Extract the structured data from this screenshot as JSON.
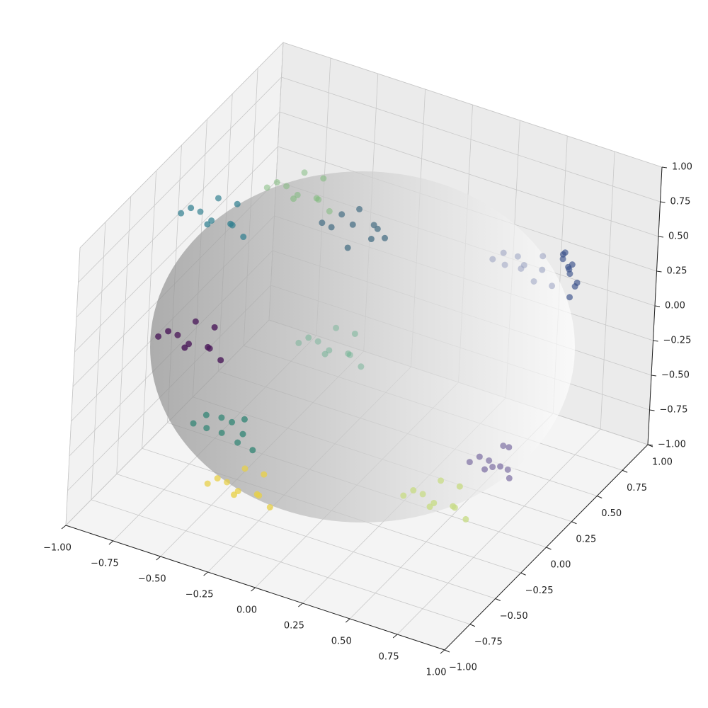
{
  "chart_data": {
    "type": "scatter3d",
    "xlim": [
      -1,
      1
    ],
    "ylim": [
      -1,
      1
    ],
    "zlim": [
      -1,
      1
    ],
    "grid": true,
    "xticks": [
      {
        "value": -1,
        "label": "−1.00"
      },
      {
        "value": -0.75,
        "label": "−0.75"
      },
      {
        "value": -0.5,
        "label": "−0.50"
      },
      {
        "value": -0.25,
        "label": "−0.25"
      },
      {
        "value": 0,
        "label": "0.00"
      },
      {
        "value": 0.25,
        "label": "0.25"
      },
      {
        "value": 0.5,
        "label": "0.50"
      },
      {
        "value": 0.75,
        "label": "0.75"
      },
      {
        "value": 1,
        "label": "1.00"
      }
    ],
    "yticks": [
      {
        "value": -1,
        "label": "−1.00"
      },
      {
        "value": -0.75,
        "label": "−0.75"
      },
      {
        "value": -0.5,
        "label": "−0.50"
      },
      {
        "value": -0.25,
        "label": "−0.25"
      },
      {
        "value": 0,
        "label": "0.00"
      },
      {
        "value": 0.25,
        "label": "0.25"
      },
      {
        "value": 0.5,
        "label": "0.50"
      },
      {
        "value": 0.75,
        "label": "0.75"
      },
      {
        "value": 1,
        "label": "1.00"
      }
    ],
    "zticks": [
      {
        "value": -1,
        "label": "−1.00"
      },
      {
        "value": -0.75,
        "label": "−0.75"
      },
      {
        "value": -0.5,
        "label": "−0.50"
      },
      {
        "value": -0.25,
        "label": "−0.25"
      },
      {
        "value": 0,
        "label": "0.00"
      },
      {
        "value": 0.25,
        "label": "0.25"
      },
      {
        "value": 0.5,
        "label": "0.50"
      },
      {
        "value": 0.75,
        "label": "0.75"
      },
      {
        "value": 1,
        "label": "1.00"
      }
    ],
    "series": [
      {
        "color": "#4b1a5a",
        "x": [
          -0.52,
          -0.4,
          -0.62,
          -0.46,
          -0.6,
          -0.36,
          -0.66,
          -0.48,
          -0.56,
          -0.42
        ],
        "y": [
          -0.78,
          -0.82,
          -0.7,
          -0.68,
          -0.84,
          -0.76,
          -0.82,
          -0.9,
          -0.64,
          -0.72
        ],
        "z": [
          0.36,
          0.42,
          0.32,
          0.28,
          0.46,
          0.3,
          0.38,
          0.44,
          0.4,
          0.48
        ]
      },
      {
        "color": "#2e7e8e",
        "x": [
          -0.76,
          -0.64,
          -0.86,
          -0.7,
          -0.84,
          -0.6,
          -0.9,
          -0.72,
          -0.8,
          -0.66
        ],
        "y": [
          -0.13,
          -0.17,
          -0.05,
          -0.03,
          -0.19,
          -0.11,
          -0.17,
          -0.25,
          0.01,
          -0.07
        ],
        "z": [
          0.66,
          0.72,
          0.62,
          0.58,
          0.76,
          0.6,
          0.68,
          0.74,
          0.7,
          0.78
        ]
      },
      {
        "color": "#55798c",
        "x": [
          -0.01,
          0.11,
          -0.11,
          0.05,
          -0.09,
          0.15,
          -0.15,
          0.03,
          -0.05,
          0.09
        ],
        "y": [
          -0.16,
          -0.2,
          -0.08,
          -0.06,
          -0.22,
          -0.14,
          -0.2,
          -0.28,
          -0.02,
          -0.1
        ],
        "z": [
          0.99,
          0.97,
          0.96,
          0.94,
          0.98,
          0.95,
          0.97,
          0.93,
          0.98,
          0.96
        ]
      },
      {
        "color": "#7dba7a",
        "x": [
          -0.71,
          -0.59,
          -0.81,
          -0.65,
          -0.79,
          -0.55,
          -0.85,
          -0.67,
          -0.75,
          -0.61
        ],
        "y": [
          0.65,
          0.61,
          0.73,
          0.75,
          0.59,
          0.67,
          0.61,
          0.53,
          0.79,
          0.71
        ],
        "z": [
          0.29,
          0.35,
          0.25,
          0.21,
          0.39,
          0.23,
          0.31,
          0.37,
          0.33,
          0.41
        ]
      },
      {
        "color": "#3e8a7b",
        "x": [
          -0.23,
          -0.11,
          -0.33,
          -0.17,
          -0.31,
          -0.07,
          -0.37,
          -0.19,
          -0.27,
          -0.13
        ],
        "y": [
          -0.97,
          -0.99,
          -0.93,
          -0.92,
          -0.98,
          -0.96,
          -0.99,
          -0.95,
          -0.9,
          -0.94
        ],
        "z": [
          -0.01,
          0.05,
          -0.05,
          -0.09,
          0.09,
          -0.07,
          0.01,
          0.07,
          0.03,
          0.11
        ]
      },
      {
        "color": "#e8d046",
        "x": [
          -0.19,
          -0.07,
          -0.29,
          -0.13,
          -0.27,
          -0.03,
          -0.33,
          -0.15,
          -0.23,
          -0.09
        ],
        "y": [
          -0.85,
          -0.89,
          -0.77,
          -0.75,
          -0.91,
          -0.83,
          -0.89,
          -0.97,
          -0.71,
          -0.79
        ],
        "z": [
          -0.5,
          -0.44,
          -0.54,
          -0.58,
          -0.4,
          -0.56,
          -0.48,
          -0.42,
          -0.46,
          -0.38
        ]
      },
      {
        "color": "#68b08e",
        "x": [
          -0.47,
          -0.35,
          -0.57,
          -0.41,
          -0.55,
          -0.31,
          -0.61,
          -0.43,
          -0.51,
          -0.37
        ],
        "y": [
          0.58,
          0.54,
          0.66,
          0.68,
          0.52,
          0.6,
          0.54,
          0.46,
          0.72,
          0.64
        ],
        "z": [
          -0.67,
          -0.61,
          -0.71,
          -0.75,
          -0.57,
          -0.73,
          -0.65,
          -0.59,
          -0.63,
          -0.55
        ]
      },
      {
        "color": "#8c80ad",
        "x": [
          0.9,
          0.96,
          0.84,
          0.93,
          0.86,
          0.98,
          0.8,
          0.92,
          0.88,
          0.95
        ],
        "y": [
          -0.4,
          -0.44,
          -0.32,
          -0.3,
          -0.46,
          -0.38,
          -0.44,
          -0.52,
          -0.26,
          -0.34
        ],
        "z": [
          -0.17,
          -0.11,
          -0.21,
          -0.25,
          -0.07,
          -0.23,
          -0.15,
          -0.09,
          -0.13,
          -0.05
        ]
      },
      {
        "color": "#98a0c0",
        "x": [
          0.32,
          0.44,
          0.22,
          0.38,
          0.24,
          0.48,
          0.18,
          0.36,
          0.28,
          0.42
        ],
        "y": [
          0.95,
          0.93,
          0.98,
          0.97,
          0.92,
          0.96,
          0.93,
          0.9,
          0.99,
          0.97
        ],
        "z": [
          0.0,
          0.06,
          -0.04,
          -0.08,
          0.1,
          -0.06,
          0.02,
          0.08,
          0.04,
          0.12
        ]
      },
      {
        "color": "#c9dc8a",
        "x": [
          0.71,
          0.83,
          0.61,
          0.77,
          0.63,
          0.87,
          0.57,
          0.75,
          0.67,
          0.81
        ],
        "y": [
          -0.61,
          -0.65,
          -0.53,
          -0.51,
          -0.67,
          -0.59,
          -0.65,
          -0.73,
          -0.47,
          -0.55
        ],
        "z": [
          -0.36,
          -0.3,
          -0.4,
          -0.44,
          -0.26,
          -0.42,
          -0.34,
          -0.28,
          -0.32,
          -0.24
        ]
      },
      {
        "color": "#3b528b",
        "x": [
          0.7,
          0.76,
          0.64,
          0.68,
          0.66,
          0.74,
          0.62,
          0.72,
          0.67,
          0.73
        ],
        "y": [
          0.72,
          0.66,
          0.76,
          0.74,
          0.7,
          0.68,
          0.78,
          0.64,
          0.75,
          0.65
        ],
        "z": [
          0.37,
          0.31,
          0.4,
          0.28,
          0.44,
          0.26,
          0.33,
          0.42,
          0.3,
          0.2
        ]
      }
    ]
  }
}
